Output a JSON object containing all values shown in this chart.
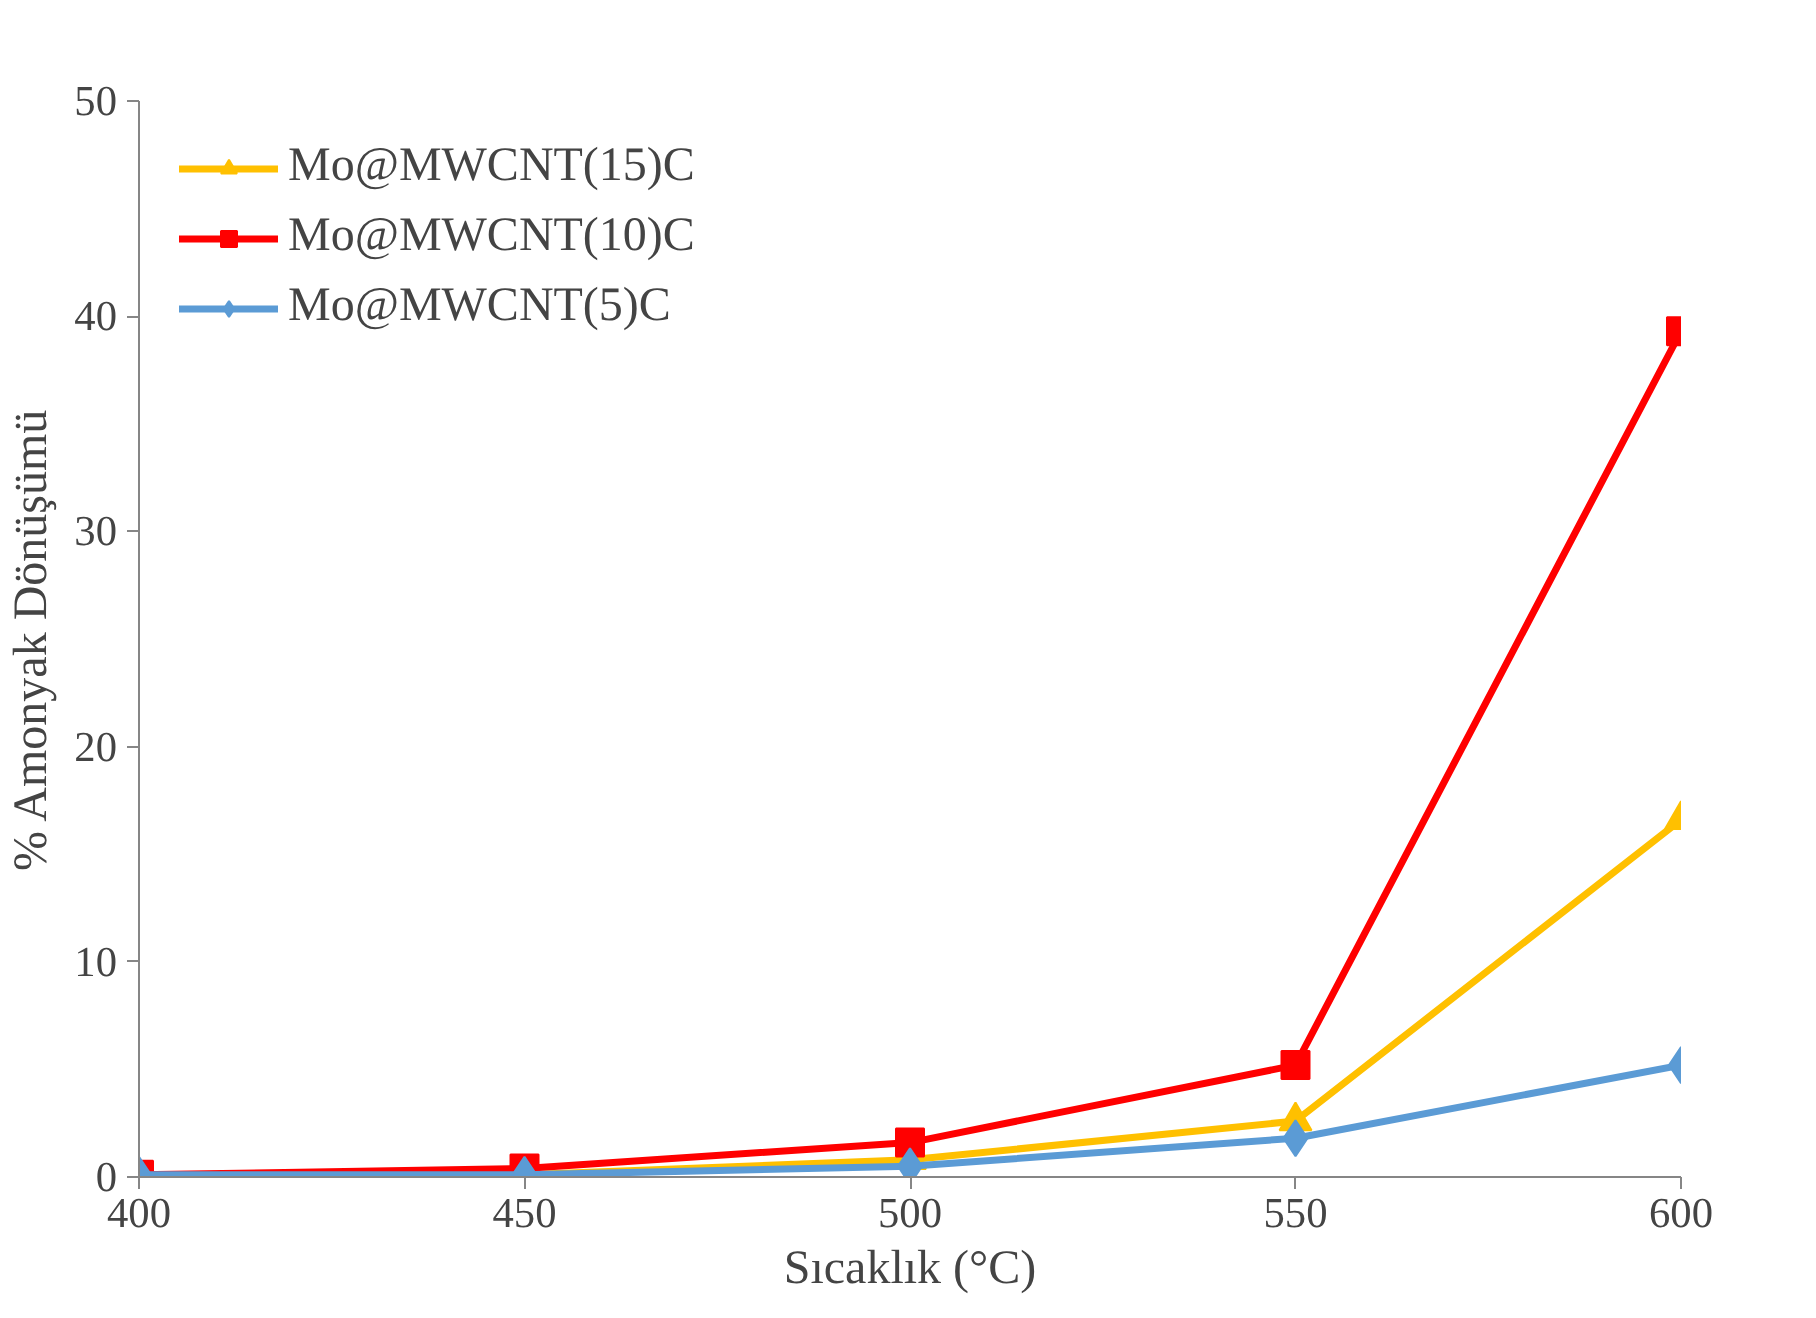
{
  "chart_data": {
    "type": "line",
    "xlabel": "Sıcaklık (°C)",
    "ylabel": "% Amonyak Dönüşümü",
    "x": [
      400,
      450,
      500,
      550,
      600
    ],
    "xlim": [
      400,
      600
    ],
    "xticks": [
      400,
      450,
      500,
      550,
      600
    ],
    "ylim": [
      0,
      50
    ],
    "yticks": [
      0,
      10,
      20,
      30,
      40,
      50
    ],
    "grid": false,
    "legend": "top left",
    "line_style": "solid",
    "series": [
      {
        "name": "Mo@MWCNT(15)C",
        "color": "#ffc000",
        "marker": "triangle",
        "values": [
          0,
          0.1,
          0.8,
          2.6,
          16.6
        ]
      },
      {
        "name": "Mo@MWCNT(10)C",
        "color": "#ff0000",
        "marker": "square",
        "values": [
          0.1,
          0.4,
          1.6,
          5.2,
          39.3
        ]
      },
      {
        "name": "Mo@MWCNT(5)C",
        "color": "#5b9bd5",
        "marker": "diamond",
        "values": [
          0.1,
          0.1,
          0.5,
          1.8,
          5.2
        ]
      }
    ]
  }
}
